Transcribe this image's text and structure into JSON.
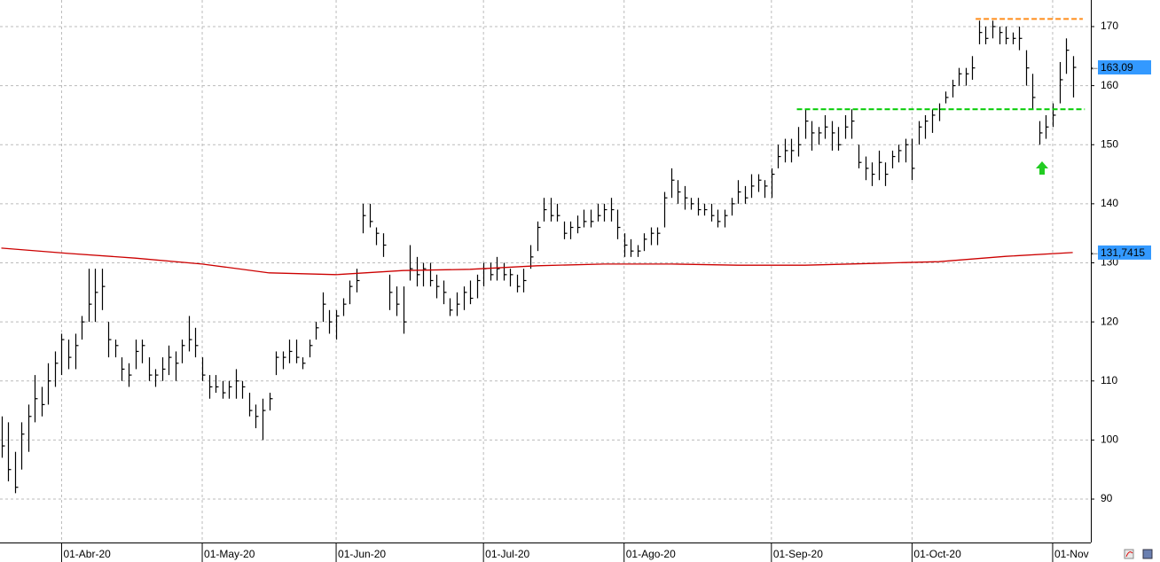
{
  "chart_data": {
    "type": "ohlc",
    "color": "#000000",
    "grid": true,
    "xlim": [
      -0.2,
      162.7
    ],
    "xticks": [
      {
        "value": 9,
        "label": "01-Abr-20"
      },
      {
        "value": 30,
        "label": "01-May-20"
      },
      {
        "value": 50,
        "label": "01-Jun-20"
      },
      {
        "value": 72,
        "label": "01-Jul-20"
      },
      {
        "value": 93,
        "label": "01-Ago-20"
      },
      {
        "value": 115,
        "label": "01-Sep-20"
      },
      {
        "value": 136,
        "label": "01-Oct-20"
      },
      {
        "value": 157,
        "label": "01-Nov"
      }
    ],
    "ylim": [
      82.65,
      174.5
    ],
    "yticks": [
      90,
      100,
      110,
      120,
      130,
      140,
      150,
      160,
      170
    ],
    "high": [
      104,
      103,
      98,
      103,
      106,
      111,
      109,
      113,
      115,
      118,
      117,
      118,
      121,
      129,
      129,
      129,
      120,
      117,
      114,
      113,
      117,
      117,
      114,
      112,
      114,
      116,
      115,
      117,
      121,
      119,
      114,
      111,
      111,
      110,
      110,
      112,
      110,
      108,
      106,
      107,
      108,
      115,
      115,
      117,
      117,
      114,
      117,
      120,
      125,
      122,
      122,
      124,
      127,
      129,
      140,
      140,
      136,
      135,
      128,
      126,
      126,
      133,
      131,
      130,
      130,
      128,
      127,
      124,
      125,
      126,
      127,
      128,
      130,
      130,
      131,
      130,
      129,
      128,
      129,
      133,
      137,
      141,
      141,
      140,
      137,
      137,
      138,
      139,
      139,
      140,
      140,
      141,
      139,
      135,
      134,
      133,
      135,
      136,
      136,
      142,
      146,
      144,
      143,
      141,
      141,
      140,
      140,
      139,
      139,
      141,
      144,
      143,
      145,
      145,
      144,
      146,
      150,
      151,
      151,
      153,
      156,
      154,
      153,
      155,
      154,
      153,
      155,
      156,
      150,
      148,
      147,
      149,
      147,
      149,
      150,
      151,
      151,
      154,
      155,
      156,
      157,
      159,
      161,
      163,
      163,
      165,
      171,
      170,
      171,
      170,
      170,
      169,
      170,
      166,
      162,
      154,
      155,
      157,
      164,
      168,
      165
    ],
    "low": [
      97,
      93,
      91,
      95,
      98,
      103,
      104,
      106,
      109,
      111,
      112,
      112,
      117,
      120,
      120,
      122,
      114,
      114,
      110,
      109,
      112,
      113,
      110,
      109,
      110,
      111,
      110,
      113,
      115,
      114,
      110,
      107,
      108,
      107,
      107,
      107,
      107,
      104,
      102,
      100,
      105,
      111,
      112,
      113,
      113,
      112,
      114,
      117,
      120,
      118,
      117,
      121,
      123,
      125,
      135,
      136,
      133,
      131,
      122,
      121,
      118,
      127,
      126,
      126,
      126,
      124,
      123,
      121,
      121,
      122,
      123,
      124,
      126,
      127,
      127,
      127,
      126,
      125,
      125,
      129,
      132,
      137,
      137,
      137,
      134,
      134,
      135,
      136,
      136,
      137,
      137,
      137,
      134,
      131,
      131,
      131,
      132,
      133,
      133,
      136,
      141,
      140,
      139,
      139,
      138,
      138,
      137,
      136,
      136,
      138,
      140,
      140,
      141,
      142,
      141,
      141,
      146,
      147,
      147,
      148,
      151,
      149,
      150,
      151,
      149,
      149,
      151,
      151,
      146,
      144,
      143,
      144,
      143,
      146,
      147,
      147,
      144,
      150,
      151,
      152,
      154,
      157,
      158,
      160,
      160,
      161,
      167,
      167,
      168,
      167,
      167,
      167,
      166,
      160,
      156,
      150,
      151,
      153,
      157,
      162,
      158
    ],
    "close": [
      99,
      95,
      92,
      101,
      104,
      107,
      106,
      110,
      113,
      117,
      114,
      116,
      120,
      123,
      125,
      126,
      117,
      116,
      112,
      111,
      115,
      116,
      111,
      111,
      112,
      114,
      113,
      116,
      117,
      116,
      111,
      109,
      109,
      108,
      109,
      110,
      109,
      105,
      104,
      105,
      107,
      114,
      114,
      115,
      114,
      113,
      116,
      119,
      123,
      120,
      121,
      123,
      126,
      127,
      138,
      137,
      135,
      133,
      125,
      123,
      120,
      129,
      128,
      129,
      127,
      126,
      125,
      122,
      123,
      125,
      124,
      127,
      129,
      128,
      129,
      128,
      128,
      126,
      127,
      131,
      136,
      139,
      138,
      138,
      135,
      136,
      136,
      137,
      137,
      138,
      139,
      139,
      136,
      133,
      132,
      132,
      134,
      135,
      135,
      141,
      144,
      142,
      141,
      140,
      139,
      139,
      138,
      137,
      138,
      140,
      142,
      141,
      143,
      144,
      143,
      145,
      148,
      149,
      149,
      150,
      154,
      152,
      152,
      153,
      152,
      150,
      153,
      154,
      147,
      146,
      145,
      147,
      145,
      148,
      149,
      150,
      146,
      153,
      154,
      155,
      156,
      158,
      160,
      162,
      162,
      163,
      169,
      168,
      170,
      169,
      168,
      168,
      168,
      163,
      158,
      152,
      153,
      155,
      161,
      166,
      163.09
    ],
    "last_price": {
      "value": 163.09,
      "label": "163,09",
      "color": "#3399ff"
    },
    "ma": {
      "color": "#cc0000",
      "x": [
        0,
        10,
        20,
        30,
        40,
        50,
        60,
        70,
        80,
        90,
        100,
        110,
        120,
        130,
        140,
        150,
        160
      ],
      "values": [
        132.5,
        131.6,
        130.8,
        129.8,
        128.3,
        128,
        128.7,
        128.9,
        129.5,
        129.8,
        129.8,
        129.6,
        129.6,
        129.9,
        130.2,
        131.1,
        131.7415
      ],
      "value_labels": [
        null,
        null,
        null,
        null,
        null,
        null,
        null,
        null,
        null,
        null,
        null,
        null,
        null,
        null,
        null,
        null,
        "131,7415"
      ],
      "label_color": "#3399ff"
    },
    "levels": [
      {
        "value": 171.3,
        "color": "#ff8c1a",
        "from": 145.5,
        "to": 161.5
      },
      {
        "value": 156,
        "color": "#00cc00",
        "from": 118.8,
        "to": 161.8
      }
    ]
  }
}
